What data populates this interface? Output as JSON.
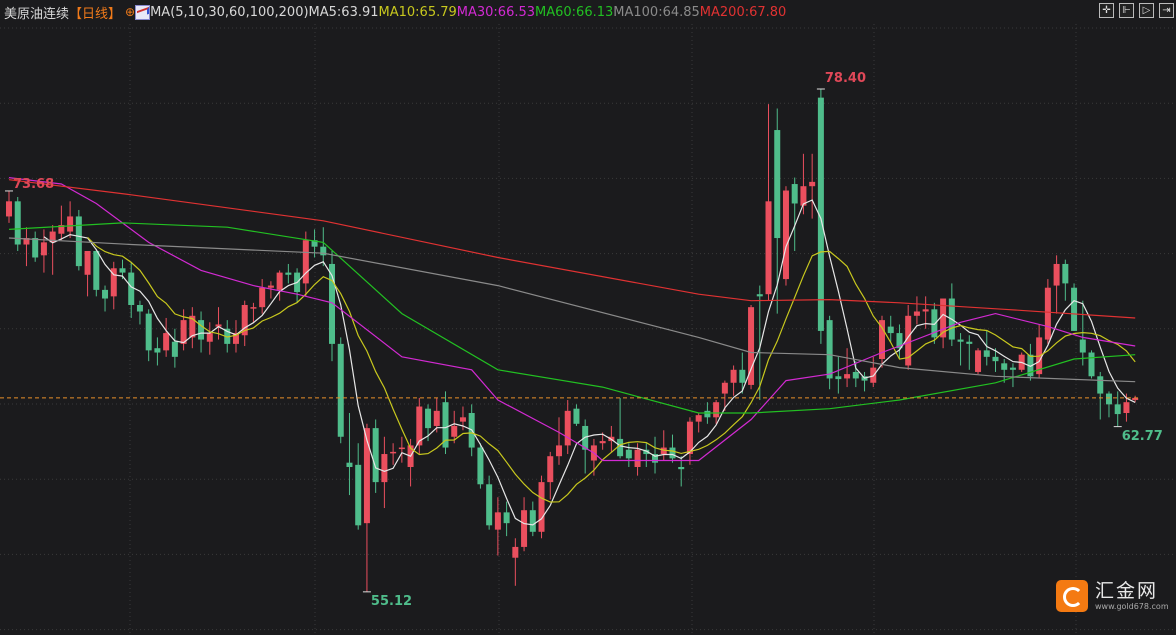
{
  "header": {
    "title": "美原油连续",
    "period": "【日线】",
    "target_icon": "crosshair-circle-icon",
    "ma_icon": "ma-chart-icon",
    "ma_params": "MA(5,10,30,60,100,200)",
    "ma_values": [
      {
        "label": "MA5:63.91",
        "color": "#d8d8d8"
      },
      {
        "label": "MA10:65.79",
        "color": "#c8c81e"
      },
      {
        "label": "MA30:66.53",
        "color": "#d22ad2"
      },
      {
        "label": "MA60:66.13",
        "color": "#22c022"
      },
      {
        "label": "MA100:64.85",
        "color": "#8a8a8a"
      },
      {
        "label": "MA200:67.80",
        "color": "#e03232"
      }
    ]
  },
  "toolbar": {
    "icons": [
      "crosshair-icon",
      "zoom-range-icon",
      "play-step-icon",
      "jump-end-icon"
    ],
    "glyphs": [
      "✛",
      "⊩",
      "▷",
      "⇥"
    ]
  },
  "watermark": {
    "name": "汇金网",
    "url": "www.gold678.com"
  },
  "colors": {
    "up": "#ea4f5e",
    "down": "#4fbd8b",
    "background": "#1b1b1d",
    "grid": "#3a3a3a",
    "last_price_line": "#e8902a"
  },
  "chart_data": {
    "type": "candlestick",
    "ohlc_fields": [
      "open",
      "high",
      "low",
      "close"
    ],
    "ylim": [
      54.4,
      78.9
    ],
    "grid": true,
    "last_price": 64.1,
    "annotations": [
      {
        "text": "73.68",
        "value": 73.68,
        "index": 0,
        "color": "#e04858"
      },
      {
        "text": "78.40",
        "value": 78.4,
        "index": 93,
        "color": "#e04858"
      },
      {
        "text": "55.12",
        "value": 55.12,
        "index": 41,
        "color": "#4fbd8b"
      },
      {
        "text": "62.77",
        "value": 62.77,
        "index": 127,
        "color": "#4fbd8b"
      }
    ],
    "candles": [
      [
        72.5,
        73.68,
        72.2,
        73.2
      ],
      [
        73.2,
        73.4,
        70.9,
        71.2
      ],
      [
        71.2,
        72.0,
        70.2,
        71.5
      ],
      [
        71.5,
        71.8,
        70.4,
        70.6
      ],
      [
        70.7,
        71.9,
        69.9,
        71.3
      ],
      [
        71.3,
        72.1,
        69.8,
        71.8
      ],
      [
        71.7,
        73.0,
        71.4,
        72.1
      ],
      [
        71.8,
        73.2,
        71.5,
        72.5
      ],
      [
        72.5,
        72.8,
        70.0,
        70.2
      ],
      [
        69.8,
        70.9,
        68.8,
        70.9
      ],
      [
        70.9,
        71.0,
        68.8,
        69.1
      ],
      [
        69.1,
        69.3,
        68.1,
        68.7
      ],
      [
        68.8,
        70.4,
        68.2,
        70.1
      ],
      [
        70.1,
        70.5,
        69.6,
        69.9
      ],
      [
        69.9,
        70.4,
        67.8,
        68.4
      ],
      [
        68.4,
        68.6,
        67.5,
        68.1
      ],
      [
        68.0,
        68.2,
        65.8,
        66.3
      ],
      [
        66.4,
        66.9,
        65.6,
        66.2
      ],
      [
        66.3,
        67.8,
        66.0,
        67.1
      ],
      [
        66.7,
        67.3,
        65.5,
        66.0
      ],
      [
        66.6,
        68.2,
        66.3,
        67.7
      ],
      [
        66.9,
        68.3,
        66.4,
        67.9
      ],
      [
        67.7,
        68.1,
        66.2,
        66.8
      ],
      [
        66.7,
        67.6,
        66.1,
        67.1
      ],
      [
        67.4,
        68.3,
        66.8,
        67.5
      ],
      [
        67.3,
        67.7,
        66.2,
        66.6
      ],
      [
        66.6,
        67.7,
        66.2,
        67.1
      ],
      [
        67.0,
        68.6,
        66.5,
        68.4
      ],
      [
        68.3,
        68.5,
        67.6,
        68.3
      ],
      [
        68.3,
        69.6,
        68.0,
        69.2
      ],
      [
        69.2,
        69.5,
        68.7,
        69.3
      ],
      [
        69.1,
        70.0,
        68.6,
        69.9
      ],
      [
        69.9,
        70.3,
        69.4,
        69.8
      ],
      [
        69.9,
        70.1,
        68.5,
        69.0
      ],
      [
        69.4,
        71.8,
        68.8,
        71.4
      ],
      [
        71.4,
        71.9,
        70.6,
        71.1
      ],
      [
        71.1,
        72.0,
        70.2,
        70.7
      ],
      [
        70.3,
        70.9,
        65.8,
        66.6
      ],
      [
        66.6,
        66.9,
        62.0,
        62.3
      ],
      [
        61.1,
        63.4,
        59.6,
        60.9
      ],
      [
        61.0,
        62.0,
        58.0,
        58.2
      ],
      [
        58.3,
        62.9,
        55.12,
        62.7
      ],
      [
        62.7,
        63.1,
        59.7,
        60.2
      ],
      [
        60.2,
        62.3,
        59.0,
        61.5
      ],
      [
        61.6,
        62.0,
        61.0,
        61.6
      ],
      [
        61.8,
        62.3,
        61.1,
        61.8
      ],
      [
        60.9,
        62.2,
        60.0,
        61.9
      ],
      [
        61.9,
        64.1,
        61.5,
        63.7
      ],
      [
        63.6,
        63.8,
        62.1,
        62.7
      ],
      [
        62.8,
        64.1,
        62.5,
        63.5
      ],
      [
        63.9,
        64.4,
        61.5,
        61.8
      ],
      [
        62.3,
        63.5,
        62.0,
        62.8
      ],
      [
        63.0,
        63.7,
        62.6,
        63.2
      ],
      [
        63.4,
        63.8,
        61.4,
        61.8
      ],
      [
        61.8,
        62.0,
        59.9,
        60.1
      ],
      [
        60.1,
        60.5,
        58.0,
        58.2
      ],
      [
        58.0,
        59.5,
        56.8,
        58.8
      ],
      [
        58.8,
        59.3,
        57.7,
        58.3
      ],
      [
        56.7,
        57.6,
        55.4,
        57.2
      ],
      [
        57.2,
        59.5,
        57.0,
        58.9
      ],
      [
        58.9,
        59.3,
        57.7,
        57.9
      ],
      [
        57.9,
        60.5,
        57.6,
        60.2
      ],
      [
        60.2,
        61.6,
        59.4,
        61.4
      ],
      [
        61.4,
        63.2,
        61.0,
        61.9
      ],
      [
        61.9,
        64.0,
        61.5,
        63.5
      ],
      [
        63.6,
        63.8,
        62.8,
        62.9
      ],
      [
        62.8,
        63.1,
        60.6,
        61.7
      ],
      [
        61.2,
        62.2,
        60.5,
        61.9
      ],
      [
        62.0,
        62.5,
        61.7,
        62.1
      ],
      [
        62.1,
        62.8,
        61.6,
        62.3
      ],
      [
        62.2,
        64.1,
        61.3,
        61.4
      ],
      [
        61.7,
        62.0,
        60.9,
        61.3
      ],
      [
        60.9,
        62.0,
        60.5,
        61.7
      ],
      [
        61.7,
        62.0,
        60.9,
        61.5
      ],
      [
        61.5,
        62.3,
        60.6,
        61.1
      ],
      [
        61.5,
        62.6,
        61.2,
        61.8
      ],
      [
        61.8,
        62.4,
        61.1,
        61.3
      ],
      [
        60.9,
        61.4,
        60.0,
        60.8
      ],
      [
        61.5,
        63.2,
        61.0,
        63.0
      ],
      [
        63.0,
        63.4,
        62.5,
        63.3
      ],
      [
        63.5,
        63.9,
        62.9,
        63.2
      ],
      [
        63.2,
        64.0,
        62.9,
        63.9
      ],
      [
        64.3,
        64.9,
        63.5,
        64.8
      ],
      [
        64.8,
        65.6,
        64.2,
        65.4
      ],
      [
        65.4,
        66.2,
        64.3,
        64.8
      ],
      [
        64.7,
        68.4,
        64.5,
        68.3
      ],
      [
        68.9,
        69.3,
        64.0,
        68.8
      ],
      [
        68.9,
        77.7,
        68.6,
        73.2
      ],
      [
        76.5,
        77.5,
        68.0,
        71.5
      ],
      [
        69.6,
        73.9,
        69.3,
        73.7
      ],
      [
        74.0,
        74.3,
        70.9,
        73.1
      ],
      [
        73.0,
        75.4,
        72.6,
        73.9
      ],
      [
        73.9,
        75.4,
        72.4,
        74.1
      ],
      [
        78.0,
        78.4,
        66.6,
        67.2
      ],
      [
        67.7,
        67.9,
        64.5,
        65.0
      ],
      [
        65.1,
        66.0,
        64.3,
        64.97
      ],
      [
        65.0,
        66.4,
        64.6,
        65.2
      ],
      [
        65.3,
        65.8,
        64.6,
        65.0
      ],
      [
        65.1,
        65.3,
        64.4,
        64.9
      ],
      [
        64.8,
        66.0,
        64.6,
        65.5
      ],
      [
        65.9,
        67.9,
        65.5,
        67.7
      ],
      [
        67.4,
        67.9,
        66.7,
        67.1
      ],
      [
        67.1,
        67.5,
        65.9,
        66.4
      ],
      [
        65.6,
        68.4,
        65.4,
        67.9
      ],
      [
        67.9,
        68.8,
        67.5,
        68.1
      ],
      [
        68.1,
        68.8,
        67.3,
        68.2
      ],
      [
        68.2,
        68.5,
        66.6,
        66.9
      ],
      [
        66.9,
        68.7,
        66.4,
        68.7
      ],
      [
        68.7,
        69.4,
        66.5,
        66.8
      ],
      [
        66.8,
        67.1,
        65.6,
        66.7
      ],
      [
        66.7,
        67.0,
        65.4,
        66.6
      ],
      [
        65.3,
        66.4,
        65.2,
        66.3
      ],
      [
        66.3,
        67.2,
        65.6,
        66.0
      ],
      [
        66.0,
        66.4,
        65.3,
        65.8
      ],
      [
        65.7,
        65.9,
        64.8,
        65.4
      ],
      [
        65.5,
        65.7,
        64.6,
        65.4
      ],
      [
        65.4,
        66.2,
        65.3,
        66.1
      ],
      [
        66.1,
        66.6,
        64.9,
        65.1
      ],
      [
        65.2,
        67.5,
        65.0,
        66.9
      ],
      [
        66.8,
        69.6,
        66.6,
        69.2
      ],
      [
        69.3,
        70.7,
        68.0,
        70.3
      ],
      [
        70.3,
        70.5,
        68.6,
        69.4
      ],
      [
        69.2,
        69.4,
        67.2,
        67.2
      ],
      [
        66.8,
        68.6,
        65.6,
        66.2
      ],
      [
        66.2,
        66.3,
        65.0,
        65.1
      ],
      [
        65.1,
        65.3,
        63.1,
        64.3
      ],
      [
        64.3,
        64.4,
        63.2,
        63.8
      ],
      [
        63.8,
        64.4,
        62.77,
        63.35
      ],
      [
        63.4,
        64.3,
        63.0,
        63.9
      ],
      [
        64.0,
        64.2,
        63.9,
        64.1
      ]
    ],
    "series": [
      {
        "name": "MA5",
        "period": 5,
        "color": "#e6e6e6"
      },
      {
        "name": "MA10",
        "period": 10,
        "color": "#c8c81e"
      },
      {
        "name": "MA30",
        "color": "#d22ad2",
        "points": [
          [
            0,
            74.3
          ],
          [
            6,
            74.0
          ],
          [
            10,
            73.1
          ],
          [
            16,
            71.3
          ],
          [
            22,
            70.0
          ],
          [
            28,
            69.3
          ],
          [
            33,
            68.9
          ],
          [
            37,
            68.5
          ],
          [
            45,
            66.0
          ],
          [
            53,
            65.4
          ],
          [
            56,
            64.0
          ],
          [
            63,
            62.5
          ],
          [
            67,
            61.55
          ],
          [
            68,
            61.2
          ],
          [
            79,
            61.2
          ],
          [
            85,
            63.1
          ],
          [
            89,
            64.9
          ],
          [
            94,
            65.2
          ],
          [
            100,
            66.2
          ],
          [
            102,
            66.5
          ],
          [
            109,
            67.6
          ],
          [
            113,
            68.0
          ],
          [
            119,
            67.4
          ],
          [
            123,
            66.9
          ],
          [
            129,
            66.5
          ]
        ]
      },
      {
        "name": "MA60",
        "color": "#22c022",
        "points": [
          [
            0,
            71.9
          ],
          [
            13,
            72.2
          ],
          [
            25,
            72.0
          ],
          [
            36,
            71.3
          ],
          [
            45,
            68.0
          ],
          [
            56,
            65.4
          ],
          [
            68,
            64.6
          ],
          [
            79,
            63.4
          ],
          [
            85,
            63.4
          ],
          [
            94,
            63.6
          ],
          [
            102,
            64.0
          ],
          [
            113,
            64.8
          ],
          [
            122,
            65.9
          ],
          [
            129,
            66.1
          ]
        ]
      },
      {
        "name": "MA100",
        "color": "#8a8a8a",
        "points": [
          [
            0,
            71.5
          ],
          [
            14,
            71.2
          ],
          [
            36,
            70.8
          ],
          [
            56,
            69.3
          ],
          [
            79,
            66.9
          ],
          [
            85,
            66.2
          ],
          [
            94,
            66.1
          ],
          [
            102,
            65.5
          ],
          [
            113,
            65.1
          ],
          [
            129,
            64.85
          ]
        ]
      },
      {
        "name": "MA200",
        "color": "#e03232",
        "points": [
          [
            0,
            74.2
          ],
          [
            14,
            73.5
          ],
          [
            36,
            72.3
          ],
          [
            56,
            70.6
          ],
          [
            79,
            68.9
          ],
          [
            85,
            68.6
          ],
          [
            94,
            68.65
          ],
          [
            102,
            68.5
          ],
          [
            114,
            68.2
          ],
          [
            129,
            67.8
          ]
        ]
      }
    ]
  }
}
